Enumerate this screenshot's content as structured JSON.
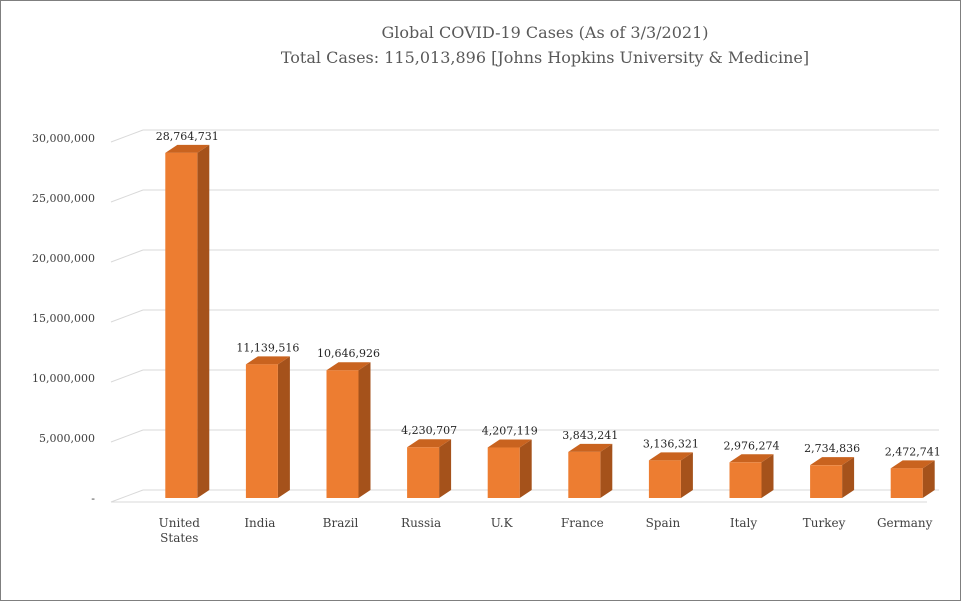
{
  "chart_data": {
    "type": "bar",
    "title": "Global COVID-19 Cases (As of 3/3/2021)",
    "subtitle": "Total Cases: 115,013,896 [Johns Hopkins University & Medicine]",
    "xlabel": "",
    "ylabel": "",
    "ylim": [
      0,
      30000000
    ],
    "yticks": [
      0,
      5000000,
      10000000,
      15000000,
      20000000,
      25000000,
      30000000
    ],
    "ytick_labels": [
      "-",
      "5,000,000",
      "10,000,000",
      "15,000,000",
      "20,000,000",
      "25,000,000",
      "30,000,000"
    ],
    "categories": [
      "United States",
      "India",
      "Brazil",
      "Russia",
      "U.K",
      "France",
      "Spain",
      "Italy",
      "Turkey",
      "Germany"
    ],
    "values": [
      28764731,
      11139516,
      10646926,
      4230707,
      4207119,
      3843241,
      3136321,
      2976274,
      2734836,
      2472741
    ],
    "value_labels": [
      "28,764,731",
      "11,139,516",
      "10,646,926",
      "4,230,707",
      "4,207,119",
      "3,843,241",
      "3,136,321",
      "2,976,274",
      "2,734,836",
      "2,472,741"
    ],
    "grid": true,
    "legend": "none",
    "style": "3d-column",
    "colors": {
      "bar_front": "#ED7D31",
      "bar_side": "#A5521B",
      "bar_top": "#C9631F",
      "gridline": "#D9D9D9",
      "title": "#595959"
    }
  }
}
